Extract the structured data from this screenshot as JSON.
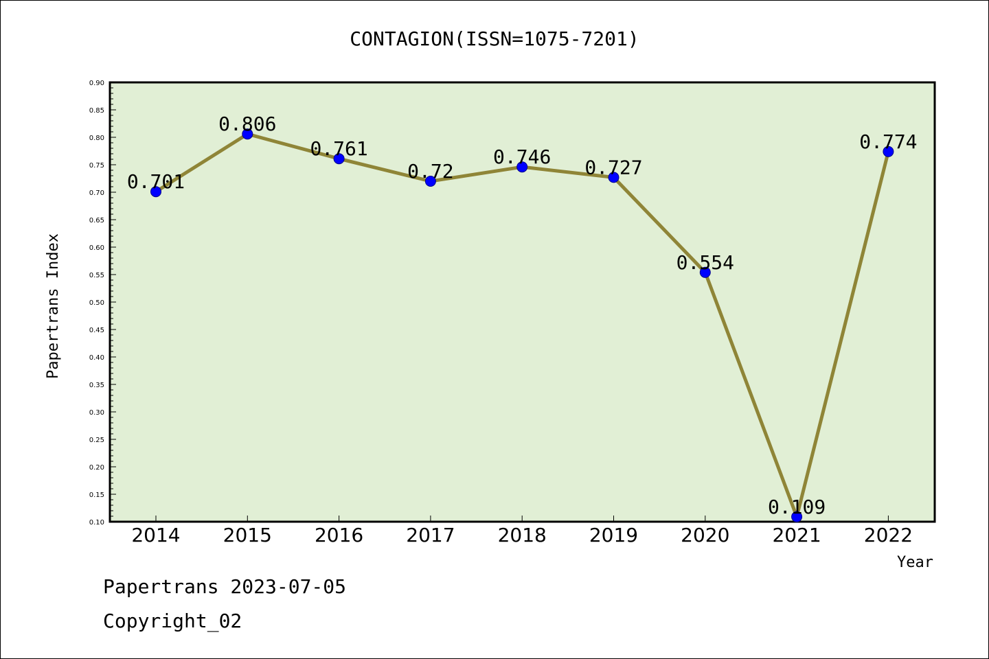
{
  "chart_data": {
    "type": "line",
    "title": "CONTAGION(ISSN=1075-7201)",
    "xlabel": "Year",
    "ylabel": "Papertrans Index",
    "categories": [
      "2014",
      "2015",
      "2016",
      "2017",
      "2018",
      "2019",
      "2020",
      "2021",
      "2022"
    ],
    "values": [
      0.701,
      0.806,
      0.761,
      0.72,
      0.746,
      0.727,
      0.554,
      0.109,
      0.774
    ],
    "data_labels": [
      "0.701",
      "0.806",
      "0.761",
      "0.72",
      "0.746",
      "0.727",
      "0.554",
      "0.109",
      "0.774"
    ],
    "ylim": [
      0.1,
      0.9
    ],
    "yticks": [
      "0.10",
      "0.15",
      "0.20",
      "0.25",
      "0.30",
      "0.35",
      "0.40",
      "0.45",
      "0.50",
      "0.55",
      "0.60",
      "0.65",
      "0.70",
      "0.75",
      "0.80",
      "0.85",
      "0.90"
    ],
    "grid": false,
    "colors": {
      "plot_background": "#e1efd5",
      "line": "#8f8537",
      "marker": "#0000ff"
    }
  },
  "footer": {
    "date_line": "Papertrans 2023-07-05",
    "copyright": "Copyright_02"
  }
}
